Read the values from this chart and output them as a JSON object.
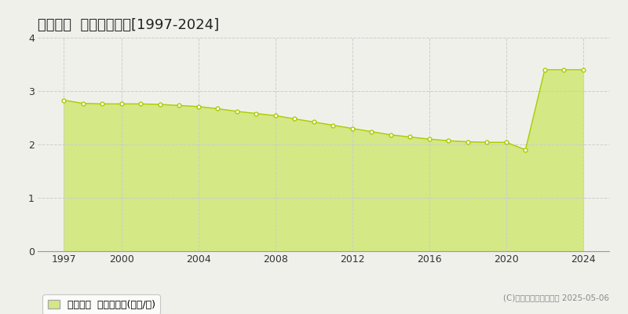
{
  "title": "五ヶ瀬町  基準地価推移[1997-2024]",
  "years": [
    1997,
    1998,
    1999,
    2000,
    2001,
    2002,
    2003,
    2004,
    2005,
    2006,
    2007,
    2008,
    2009,
    2010,
    2011,
    2012,
    2013,
    2014,
    2015,
    2016,
    2017,
    2018,
    2019,
    2020,
    2021,
    2022,
    2023,
    2024
  ],
  "values": [
    2.83,
    2.77,
    2.76,
    2.76,
    2.76,
    2.75,
    2.73,
    2.71,
    2.67,
    2.62,
    2.58,
    2.54,
    2.48,
    2.42,
    2.36,
    2.3,
    2.24,
    2.18,
    2.14,
    2.1,
    2.07,
    2.05,
    2.04,
    2.04,
    1.9,
    3.4,
    3.4,
    3.4
  ],
  "line_color": "#aacc00",
  "fill_color": "#d4e885",
  "marker_face": "#ffffff",
  "marker_edge": "#aacc00",
  "background_color": "#f0f0eb",
  "grid_color": "#cccccc",
  "ylim": [
    0,
    4
  ],
  "yticks": [
    0,
    1,
    2,
    3,
    4
  ],
  "xticks": [
    1997,
    2000,
    2004,
    2008,
    2012,
    2016,
    2020,
    2024
  ],
  "legend_label": "基準地価  平均坪単価(万円/坪)",
  "copyright_text": "(C)土地価格ドットコム 2025-05-06",
  "title_fontsize": 13,
  "axis_fontsize": 9,
  "legend_fontsize": 9
}
